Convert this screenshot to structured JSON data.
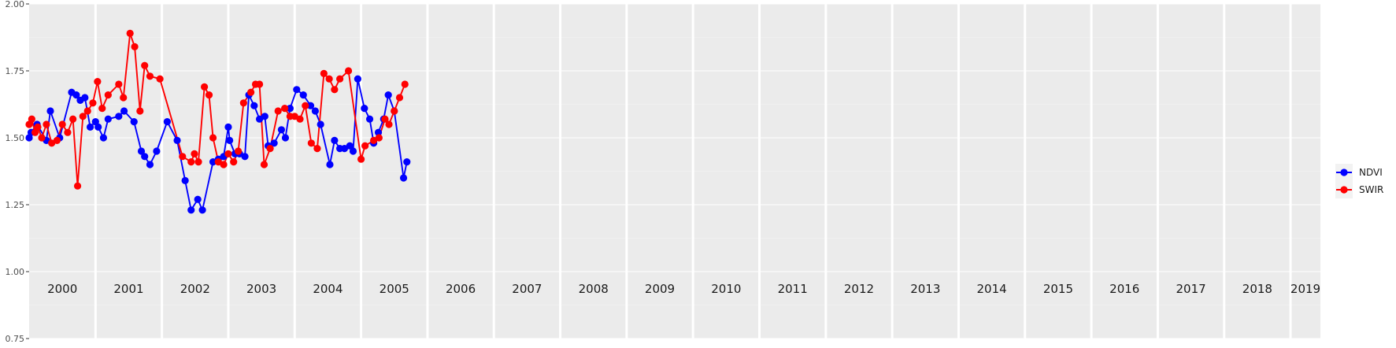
{
  "chart_data": {
    "type": "line",
    "title": "",
    "xlabel": "",
    "ylabel": "",
    "xlim": [
      2000.0,
      2019.45
    ],
    "ylim": [
      0.75,
      2.0
    ],
    "yticks": [
      "0.75",
      "1.00",
      "1.25",
      "1.50",
      "1.75",
      "2.00"
    ],
    "ytick_values": [
      0.75,
      1.0,
      1.25,
      1.5,
      1.75,
      2.0
    ],
    "year_labels": [
      "2000",
      "2001",
      "2002",
      "2003",
      "2004",
      "2005",
      "2006",
      "2007",
      "2008",
      "2009",
      "2010",
      "2011",
      "2012",
      "2013",
      "2014",
      "2015",
      "2016",
      "2017",
      "2018",
      "2019"
    ],
    "year_values": [
      2000,
      2001,
      2002,
      2003,
      2004,
      2005,
      2006,
      2007,
      2008,
      2009,
      2010,
      2011,
      2012,
      2013,
      2014,
      2015,
      2016,
      2017,
      2018,
      2019
    ],
    "grid": true,
    "legend_position": "right",
    "series": [
      {
        "name": "NDVI",
        "color": "#0000FF",
        "x": [
          2000.0,
          2000.03,
          2000.12,
          2000.26,
          2000.32,
          2000.46,
          2000.64,
          2000.71,
          2000.77,
          2000.84,
          2000.92,
          2001.0,
          2001.04,
          2001.12,
          2001.19,
          2001.35,
          2001.43,
          2001.58,
          2001.69,
          2001.74,
          2001.82,
          2001.92,
          2002.08,
          2002.23,
          2002.35,
          2002.44,
          2002.54,
          2002.61,
          2002.77,
          2002.85,
          2002.93,
          2003.0,
          2003.02,
          2003.1,
          2003.17,
          2003.25,
          2003.31,
          2003.39,
          2003.47,
          2003.55,
          2003.6,
          2003.69,
          2003.8,
          2003.86,
          2003.93,
          2004.03,
          2004.13,
          2004.24,
          2004.31,
          2004.39,
          2004.53,
          2004.6,
          2004.68,
          2004.75,
          2004.83,
          2004.88,
          2004.95,
          2005.05,
          2005.13,
          2005.19,
          2005.26,
          2005.34,
          2005.41,
          2005.5,
          2005.64,
          2005.69
        ],
        "y": [
          1.5,
          1.52,
          1.55,
          1.49,
          1.6,
          1.5,
          1.67,
          1.66,
          1.64,
          1.65,
          1.54,
          1.56,
          1.54,
          1.5,
          1.57,
          1.58,
          1.6,
          1.56,
          1.45,
          1.43,
          1.4,
          1.45,
          1.56,
          1.49,
          1.34,
          1.23,
          1.27,
          1.23,
          1.41,
          1.42,
          1.43,
          1.54,
          1.49,
          1.44,
          1.44,
          1.43,
          1.66,
          1.62,
          1.57,
          1.58,
          1.47,
          1.48,
          1.53,
          1.5,
          1.61,
          1.68,
          1.66,
          1.62,
          1.6,
          1.55,
          1.4,
          1.49,
          1.46,
          1.46,
          1.47,
          1.45,
          1.72,
          1.61,
          1.57,
          1.48,
          1.52,
          1.57,
          1.66,
          1.6,
          1.35,
          1.41
        ]
      },
      {
        "name": "SWIR",
        "color": "#FF0000",
        "x": [
          2000.0,
          2000.04,
          2000.09,
          2000.13,
          2000.19,
          2000.26,
          2000.34,
          2000.42,
          2000.5,
          2000.58,
          2000.66,
          2000.73,
          2000.81,
          2000.88,
          2000.96,
          2001.03,
          2001.1,
          2001.19,
          2001.35,
          2001.42,
          2001.52,
          2001.59,
          2001.67,
          2001.74,
          2001.82,
          2001.97,
          2002.31,
          2002.44,
          2002.49,
          2002.55,
          2002.64,
          2002.71,
          2002.77,
          2002.85,
          2002.93,
          2003.0,
          2003.08,
          2003.15,
          2003.23,
          2003.34,
          2003.41,
          2003.47,
          2003.54,
          2003.63,
          2003.75,
          2003.85,
          2003.93,
          2004.0,
          2004.08,
          2004.16,
          2004.25,
          2004.34,
          2004.44,
          2004.52,
          2004.6,
          2004.68,
          2004.81,
          2005.0,
          2005.06,
          2005.19,
          2005.27,
          2005.36,
          2005.42,
          2005.5,
          2005.58,
          2005.66
        ],
        "y": [
          1.55,
          1.57,
          1.52,
          1.54,
          1.5,
          1.55,
          1.48,
          1.49,
          1.55,
          1.52,
          1.57,
          1.32,
          1.58,
          1.6,
          1.63,
          1.71,
          1.61,
          1.66,
          1.7,
          1.65,
          1.89,
          1.84,
          1.6,
          1.77,
          1.73,
          1.72,
          1.43,
          1.41,
          1.44,
          1.41,
          1.69,
          1.66,
          1.5,
          1.41,
          1.4,
          1.44,
          1.41,
          1.45,
          1.63,
          1.67,
          1.7,
          1.7,
          1.4,
          1.46,
          1.6,
          1.61,
          1.58,
          1.58,
          1.57,
          1.62,
          1.48,
          1.46,
          1.74,
          1.72,
          1.68,
          1.72,
          1.75,
          1.42,
          1.47,
          1.49,
          1.5,
          1.57,
          1.55,
          1.6,
          1.65,
          1.7
        ]
      }
    ]
  },
  "legend": {
    "items": [
      {
        "name": "NDVI",
        "color": "#0000FF"
      },
      {
        "name": "SWIR",
        "color": "#FF0000"
      }
    ]
  }
}
